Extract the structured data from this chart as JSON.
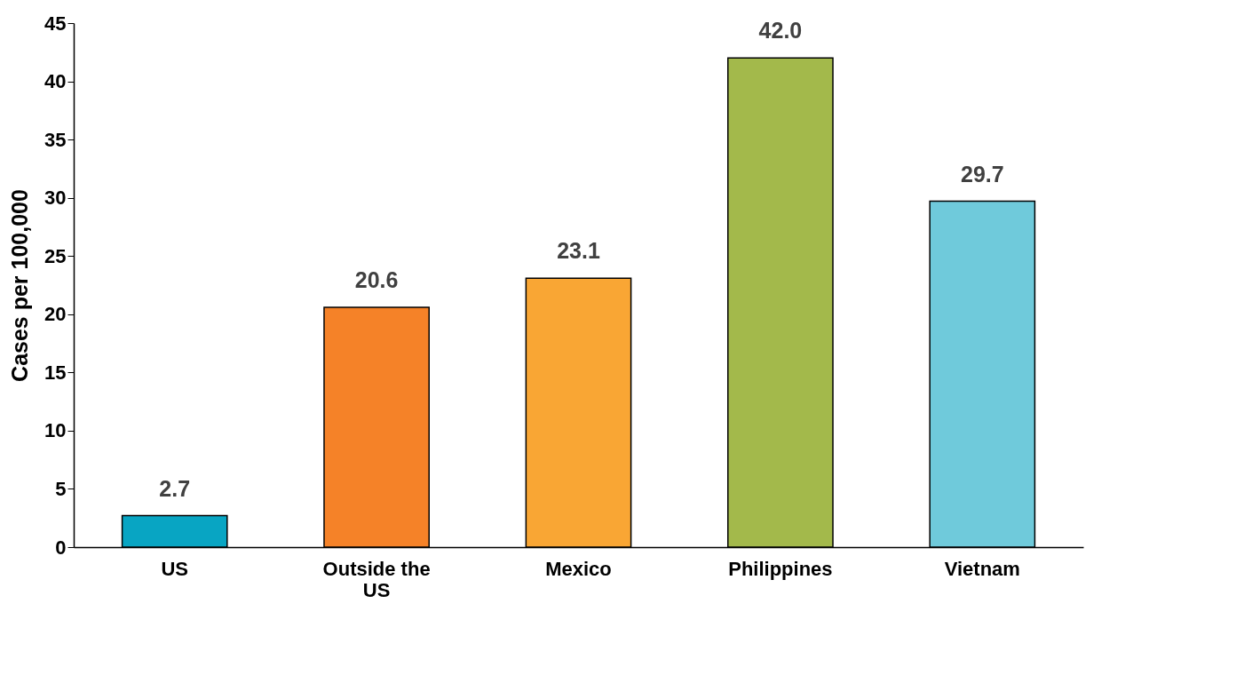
{
  "chart_data": {
    "type": "bar",
    "ylabel": "Cases per 100,000",
    "categories": [
      "US",
      "Outside the US",
      "Mexico",
      "Philippines",
      "Vietnam"
    ],
    "values": [
      2.7,
      20.6,
      23.1,
      42.0,
      29.7
    ],
    "colors": [
      "#08a5c3",
      "#f58228",
      "#f9a634",
      "#a3b94b",
      "#6fcadb"
    ],
    "value_labels": [
      "2.7",
      "20.6",
      "23.1",
      "42.0",
      "29.7"
    ],
    "ylim": [
      0,
      45
    ],
    "yticks": [
      0,
      5,
      10,
      15,
      20,
      25,
      30,
      35,
      40,
      45
    ],
    "grid": false
  }
}
